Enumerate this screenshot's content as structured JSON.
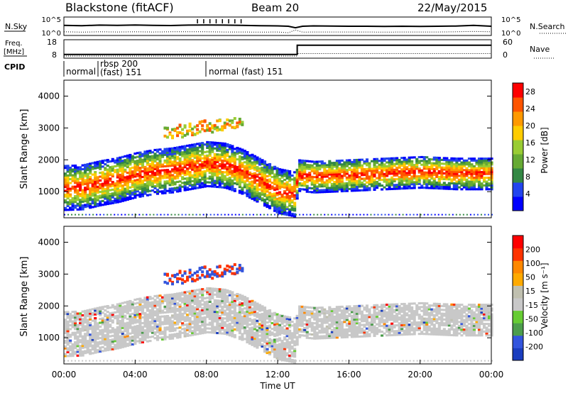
{
  "header": {
    "station": "Blackstone (fitACF)",
    "beam": "Beam 20",
    "date": "22/May/2015"
  },
  "colors": {
    "power_scale": [
      "#0000ff",
      "#2244ee",
      "#338844",
      "#66aa33",
      "#99cc33",
      "#ffcc00",
      "#ff9900",
      "#ff5500",
      "#ff0000"
    ],
    "velocity_scale": [
      "#1a3dbf",
      "#3355dd",
      "#4c9d4c",
      "#66cc33",
      "#c8c8c8",
      "#c0c0b0",
      "#ffaa00",
      "#ff8800",
      "#ff3300",
      "#ff0000"
    ]
  },
  "chart_data": [
    {
      "type": "line",
      "panel": "noise",
      "left_label": "N.Sky",
      "right_label": "N.Search",
      "left_ticks": [
        "10^5",
        "10^0"
      ],
      "right_ticks": [
        "10^5",
        "10^0"
      ],
      "series": [
        {
          "name": "N.Sky",
          "style": "solid"
        },
        {
          "name": "N.Search",
          "style": "dotted"
        }
      ],
      "sky": {
        "x": [
          0,
          1,
          2,
          3,
          4,
          5,
          6,
          7,
          8,
          9,
          10,
          11,
          12,
          12.6,
          13,
          13.4,
          14,
          15,
          16,
          17,
          18,
          19,
          20,
          21,
          22,
          23,
          24
        ],
        "y": [
          0.55,
          0.53,
          0.56,
          0.55,
          0.57,
          0.55,
          0.54,
          0.56,
          0.57,
          0.56,
          0.55,
          0.53,
          0.52,
          0.5,
          0.42,
          0.5,
          0.52,
          0.51,
          0.5,
          0.5,
          0.49,
          0.5,
          0.49,
          0.5,
          0.51,
          0.55,
          0.5
        ]
      },
      "search": {
        "x": [
          0,
          1,
          2,
          3,
          4,
          5,
          6,
          7,
          8,
          9,
          10,
          11,
          12,
          12.6,
          13,
          13.4,
          14,
          15,
          16,
          17,
          18,
          19,
          20,
          21,
          22,
          23,
          24
        ],
        "y": [
          0.2,
          0.18,
          0.2,
          0.19,
          0.2,
          0.19,
          0.2,
          0.2,
          0.2,
          0.19,
          0.19,
          0.18,
          0.19,
          0.15,
          0.3,
          0.18,
          0.19,
          0.19,
          0.19,
          0.19,
          0.18,
          0.19,
          0.19,
          0.19,
          0.2,
          0.22,
          0.2
        ]
      }
    },
    {
      "type": "line",
      "panel": "frequency",
      "left_label": "Freq.",
      "left_unit": "[MHz]",
      "right_label": "Nave",
      "left_ticks": [
        "18",
        "8"
      ],
      "right_ticks": [
        "60",
        "0"
      ],
      "ylim_left": [
        8,
        18
      ],
      "ylim_right": [
        0,
        60
      ],
      "series": [
        {
          "name": "Freq.",
          "style": "solid"
        },
        {
          "name": "Nave",
          "style": "dotted"
        }
      ],
      "freq": {
        "x": [
          0,
          13.1,
          13.1,
          24
        ],
        "y": [
          10,
          10,
          15,
          15
        ]
      },
      "nave": {
        "x": [
          0,
          13.1,
          13.1,
          24
        ],
        "y": [
          7,
          7,
          15,
          15
        ]
      }
    },
    {
      "type": "table",
      "panel": "cpid",
      "label": "CPID",
      "segments": [
        {
          "start": 0,
          "end": 1.8,
          "text": "normal"
        },
        {
          "start": 1.8,
          "end": 7.8,
          "text_top": "rbsp 200",
          "text": "(fast) 151"
        },
        {
          "start": 7.8,
          "end": 24,
          "text": "normal (fast)  151"
        }
      ]
    },
    {
      "type": "heatmap",
      "panel": "power",
      "ylabel": "Slant Range [km]",
      "xlim": [
        0,
        24
      ],
      "ylim": [
        180,
        4500
      ],
      "yticks": [
        1000,
        2000,
        3000,
        4000
      ],
      "colorbar_label": "Power [dB]",
      "colorbar_ticks": [
        4,
        8,
        12,
        16,
        20,
        24,
        28
      ],
      "colorbar_range": [
        0,
        30
      ]
    },
    {
      "type": "heatmap",
      "panel": "velocity",
      "ylabel": "Slant Range [km]",
      "xlabel": "Time UT",
      "xlim": [
        0,
        24
      ],
      "ylim": [
        180,
        4500
      ],
      "yticks": [
        1000,
        2000,
        3000,
        4000
      ],
      "xticks": [
        0,
        4,
        8,
        12,
        16,
        20,
        24
      ],
      "xtick_labels": [
        "00:00",
        "04:00",
        "08:00",
        "12:00",
        "16:00",
        "20:00",
        "00:00"
      ],
      "colorbar_label": "Velocity [m s⁻¹]",
      "colorbar_ticks": [
        "200",
        "100",
        "50",
        "15",
        "-15",
        "-50",
        "-100",
        "-200"
      ]
    }
  ]
}
